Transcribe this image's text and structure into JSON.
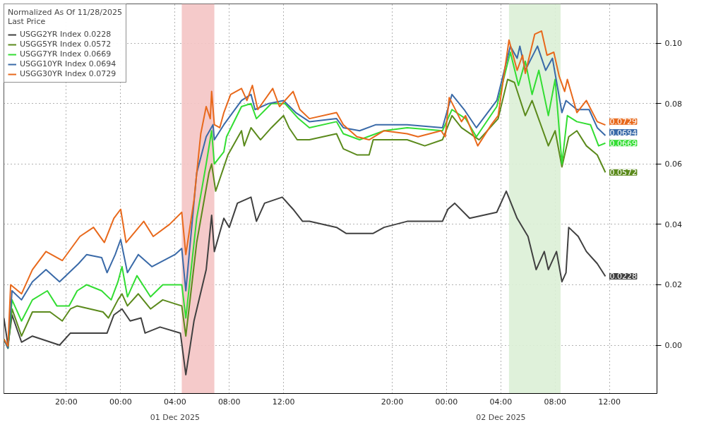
{
  "chart_data": {
    "type": "line",
    "legend_title": "Normalized As Of 11/28/2025\nLast Price",
    "legend": "top left",
    "grid": true,
    "line_style": "solid",
    "marker": "none",
    "annotations": [
      "01 Dec 2025",
      "02 Dec 2025"
    ],
    "xlim": [
      "2025-11-30T15:24",
      "2025-12-02T15:30"
    ],
    "xticks": [
      {
        "value": "2025-11-30T20:00",
        "label": "20:00"
      },
      {
        "value": "2025-12-01T00:00",
        "label": "00:00"
      },
      {
        "value": "2025-12-01T04:00",
        "label": "04:00"
      },
      {
        "value": "2025-12-01T08:00",
        "label": "08:00"
      },
      {
        "value": "2025-12-01T12:00",
        "label": "12:00"
      },
      {
        "value": "2025-12-01T20:00",
        "label": "20:00"
      },
      {
        "value": "2025-12-02T00:00",
        "label": "00:00"
      },
      {
        "value": "2025-12-02T04:00",
        "label": "04:00"
      },
      {
        "value": "2025-12-02T08:00",
        "label": "08:00"
      },
      {
        "value": "2025-12-02T12:00",
        "label": "12:00"
      }
    ],
    "ylim": [
      -0.016,
      0.113
    ],
    "yticks": [
      {
        "value": 0,
        "label": "0.00"
      },
      {
        "value": 0.02,
        "label": "0.02"
      },
      {
        "value": 0.04,
        "label": "0.04"
      },
      {
        "value": 0.06,
        "label": "0.06"
      },
      {
        "value": 0.08,
        "label": "0.08"
      },
      {
        "value": 0.1,
        "label": "0.10"
      }
    ],
    "bands": [
      {
        "axis": "x",
        "from": "2025-12-01T04:30",
        "to": "2025-12-01T06:54",
        "color": "#f4c4c4"
      },
      {
        "axis": "x",
        "from": "2025-12-02T04:36",
        "to": "2025-12-02T08:24",
        "color": "#dcefd6"
      }
    ],
    "series": [
      {
        "name": "USGG2YR Index 0.0228",
        "color": "#404040",
        "x": [
          "2025-11-30T15:24",
          "2025-11-30T15:42",
          "2025-11-30T16:00",
          "2025-11-30T16:42",
          "2025-11-30T17:30",
          "2025-11-30T19:30",
          "2025-11-30T20:18",
          "2025-11-30T23:00",
          "2025-11-30T23:30",
          "2025-12-01T00:06",
          "2025-12-01T00:42",
          "2025-12-01T01:30",
          "2025-12-01T01:48",
          "2025-12-01T02:54",
          "2025-12-01T04:24",
          "2025-12-01T04:48",
          "2025-12-01T05:24",
          "2025-12-01T06:18",
          "2025-12-01T06:42",
          "2025-12-01T06:54",
          "2025-12-01T07:36",
          "2025-12-01T08:00",
          "2025-12-01T08:36",
          "2025-12-01T09:36",
          "2025-12-01T10:00",
          "2025-12-01T10:36",
          "2025-12-01T11:54",
          "2025-12-01T12:42",
          "2025-12-01T13:24",
          "2025-12-01T13:54",
          "2025-12-01T15:54",
          "2025-12-01T16:36",
          "2025-12-01T18:36",
          "2025-12-01T19:24",
          "2025-12-01T21:06",
          "2025-12-01T23:42",
          "2025-12-02T00:06",
          "2025-12-02T00:36",
          "2025-12-02T01:42",
          "2025-12-02T03:42",
          "2025-12-02T04:24",
          "2025-12-02T05:12",
          "2025-12-02T06:00",
          "2025-12-02T06:36",
          "2025-12-02T07:12",
          "2025-12-02T07:30",
          "2025-12-02T08:06",
          "2025-12-02T08:30",
          "2025-12-02T08:48",
          "2025-12-02T09:00",
          "2025-12-02T09:42",
          "2025-12-02T10:18",
          "2025-12-02T11:06",
          "2025-12-02T11:42"
        ],
        "values": [
          0.009,
          0.0,
          0.01,
          0.001,
          0.003,
          0.0,
          0.004,
          0.004,
          0.01,
          0.012,
          0.008,
          0.009,
          0.004,
          0.006,
          0.004,
          -0.0098,
          0.008,
          0.025,
          0.043,
          0.031,
          0.042,
          0.039,
          0.047,
          0.049,
          0.041,
          0.047,
          0.049,
          0.045,
          0.041,
          0.041,
          0.039,
          0.037,
          0.037,
          0.039,
          0.041,
          0.041,
          0.045,
          0.047,
          0.042,
          0.044,
          0.051,
          0.042,
          0.036,
          0.025,
          0.031,
          0.025,
          0.031,
          0.021,
          0.024,
          0.039,
          0.036,
          0.031,
          0.027,
          0.0228
        ],
        "value_labels": [
          null,
          null,
          null,
          null,
          null,
          null,
          null,
          null,
          null,
          null,
          null,
          null,
          null,
          null,
          null,
          null,
          null,
          null,
          null,
          null,
          null,
          null,
          null,
          null,
          null,
          null,
          null,
          null,
          null,
          null,
          null,
          null,
          null,
          null,
          null,
          null,
          null,
          null,
          null,
          null,
          null,
          null,
          null,
          null,
          null,
          null,
          null,
          null,
          null,
          null,
          null,
          null,
          null,
          "0.0228"
        ]
      },
      {
        "name": "USGG5YR Index 0.0572",
        "color": "#5b8a1c",
        "x": [
          "2025-11-30T15:24",
          "2025-11-30T15:42",
          "2025-11-30T16:00",
          "2025-11-30T16:42",
          "2025-11-30T17:30",
          "2025-11-30T18:48",
          "2025-11-30T19:42",
          "2025-11-30T20:18",
          "2025-11-30T20:48",
          "2025-11-30T22:42",
          "2025-11-30T23:06",
          "2025-11-30T23:48",
          "2025-12-01T00:06",
          "2025-12-01T00:30",
          "2025-12-01T01:18",
          "2025-12-01T02:12",
          "2025-12-01T03:06",
          "2025-12-01T04:30",
          "2025-12-01T04:48",
          "2025-12-01T05:36",
          "2025-12-01T06:30",
          "2025-12-01T06:42",
          "2025-12-01T07:00",
          "2025-12-01T07:36",
          "2025-12-01T07:54",
          "2025-12-01T08:54",
          "2025-12-01T09:06",
          "2025-12-01T09:36",
          "2025-12-01T10:18",
          "2025-12-01T11:06",
          "2025-12-01T12:00",
          "2025-12-01T12:24",
          "2025-12-01T13:00",
          "2025-12-01T13:54",
          "2025-12-01T15:54",
          "2025-12-01T16:24",
          "2025-12-01T17:24",
          "2025-12-01T18:18",
          "2025-12-01T18:36",
          "2025-12-01T21:06",
          "2025-12-01T22:24",
          "2025-12-01T23:42",
          "2025-12-02T00:24",
          "2025-12-02T01:06",
          "2025-12-02T02:24",
          "2025-12-02T03:48",
          "2025-12-02T04:30",
          "2025-12-02T05:00",
          "2025-12-02T05:48",
          "2025-12-02T06:18",
          "2025-12-02T07:30",
          "2025-12-02T08:00",
          "2025-12-02T08:30",
          "2025-12-02T09:00",
          "2025-12-02T09:36",
          "2025-12-02T10:18",
          "2025-12-02T11:06",
          "2025-12-02T11:42"
        ],
        "values": [
          0.002,
          -0.001,
          0.012,
          0.003,
          0.011,
          0.011,
          0.008,
          0.012,
          0.013,
          0.011,
          0.009,
          0.015,
          0.017,
          0.013,
          0.017,
          0.012,
          0.015,
          0.013,
          0.003,
          0.034,
          0.057,
          0.06,
          0.051,
          0.059,
          0.063,
          0.071,
          0.066,
          0.072,
          0.068,
          0.072,
          0.076,
          0.072,
          0.068,
          0.068,
          0.07,
          0.065,
          0.063,
          0.063,
          0.068,
          0.068,
          0.066,
          0.068,
          0.076,
          0.072,
          0.068,
          0.075,
          0.088,
          0.087,
          0.076,
          0.081,
          0.066,
          0.071,
          0.059,
          0.069,
          0.071,
          0.066,
          0.063,
          0.0572
        ],
        "value_labels": [
          null,
          null,
          null,
          null,
          null,
          null,
          null,
          null,
          null,
          null,
          null,
          null,
          null,
          null,
          null,
          null,
          null,
          null,
          null,
          null,
          null,
          null,
          null,
          null,
          null,
          null,
          null,
          null,
          null,
          null,
          null,
          null,
          null,
          null,
          null,
          null,
          null,
          null,
          null,
          null,
          null,
          null,
          null,
          null,
          null,
          null,
          null,
          null,
          null,
          null,
          null,
          null,
          null,
          null,
          null,
          null,
          null,
          "0.0572"
        ]
      },
      {
        "name": "USGG7YR Index 0.0669",
        "color": "#33dd33",
        "x": [
          "2025-11-30T15:24",
          "2025-11-30T15:42",
          "2025-11-30T16:00",
          "2025-11-30T16:42",
          "2025-11-30T17:30",
          "2025-11-30T18:36",
          "2025-11-30T19:18",
          "2025-11-30T20:12",
          "2025-11-30T20:48",
          "2025-11-30T21:30",
          "2025-11-30T22:36",
          "2025-11-30T23:18",
          "2025-11-30T23:48",
          "2025-12-01T00:06",
          "2025-12-01T00:30",
          "2025-12-01T01:12",
          "2025-12-01T02:12",
          "2025-12-01T03:06",
          "2025-12-01T04:30",
          "2025-12-01T04:48",
          "2025-12-01T05:36",
          "2025-12-01T06:18",
          "2025-12-01T06:42",
          "2025-12-01T06:54",
          "2025-12-01T07:36",
          "2025-12-01T07:48",
          "2025-12-01T08:54",
          "2025-12-01T09:36",
          "2025-12-01T10:00",
          "2025-12-01T11:06",
          "2025-12-01T12:06",
          "2025-12-01T13:06",
          "2025-12-01T13:54",
          "2025-12-01T15:54",
          "2025-12-01T16:24",
          "2025-12-01T17:36",
          "2025-12-01T19:24",
          "2025-12-01T21:06",
          "2025-12-01T23:42",
          "2025-12-02T00:24",
          "2025-12-02T01:24",
          "2025-12-02T02:12",
          "2025-12-02T03:42",
          "2025-12-02T04:42",
          "2025-12-02T05:18",
          "2025-12-02T05:48",
          "2025-12-02T06:18",
          "2025-12-02T06:48",
          "2025-12-02T07:30",
          "2025-12-02T08:00",
          "2025-12-02T08:30",
          "2025-12-02T08:54",
          "2025-12-02T09:36",
          "2025-12-02T10:36",
          "2025-12-02T11:12",
          "2025-12-02T11:42"
        ],
        "values": [
          0.002,
          -0.001,
          0.015,
          0.008,
          0.015,
          0.018,
          0.013,
          0.013,
          0.018,
          0.02,
          0.018,
          0.015,
          0.021,
          0.026,
          0.016,
          0.023,
          0.016,
          0.02,
          0.02,
          0.009,
          0.042,
          0.06,
          0.071,
          0.06,
          0.064,
          0.069,
          0.079,
          0.08,
          0.075,
          0.08,
          0.08,
          0.075,
          0.072,
          0.074,
          0.07,
          0.068,
          0.071,
          0.072,
          0.071,
          0.078,
          0.075,
          0.069,
          0.079,
          0.097,
          0.086,
          0.094,
          0.083,
          0.091,
          0.076,
          0.088,
          0.06,
          0.076,
          0.074,
          0.073,
          0.066,
          0.0669
        ],
        "value_labels": [
          null,
          null,
          null,
          null,
          null,
          null,
          null,
          null,
          null,
          null,
          null,
          null,
          null,
          null,
          null,
          null,
          null,
          null,
          null,
          null,
          null,
          null,
          null,
          null,
          null,
          null,
          null,
          null,
          null,
          null,
          null,
          null,
          null,
          null,
          null,
          null,
          null,
          null,
          null,
          null,
          null,
          null,
          null,
          null,
          null,
          null,
          null,
          null,
          null,
          null,
          null,
          null,
          null,
          null,
          null,
          "0.0669"
        ]
      },
      {
        "name": "USGG10YR Index 0.0694",
        "color": "#3a6aa8",
        "x": [
          "2025-11-30T15:24",
          "2025-11-30T15:42",
          "2025-11-30T16:00",
          "2025-11-30T16:42",
          "2025-11-30T17:30",
          "2025-11-30T18:30",
          "2025-11-30T19:30",
          "2025-11-30T20:54",
          "2025-11-30T21:30",
          "2025-11-30T22:36",
          "2025-11-30T23:00",
          "2025-11-30T23:36",
          "2025-12-01T00:00",
          "2025-12-01T00:30",
          "2025-12-01T01:18",
          "2025-12-01T02:18",
          "2025-12-01T04:00",
          "2025-12-01T04:30",
          "2025-12-01T04:48",
          "2025-12-01T05:36",
          "2025-12-01T06:18",
          "2025-12-01T06:48",
          "2025-12-01T06:54",
          "2025-12-01T07:36",
          "2025-12-01T08:54",
          "2025-12-01T09:36",
          "2025-12-01T09:54",
          "2025-12-01T10:54",
          "2025-12-01T12:00",
          "2025-12-01T12:54",
          "2025-12-01T13:54",
          "2025-12-01T15:54",
          "2025-12-01T16:24",
          "2025-12-01T17:36",
          "2025-12-01T18:48",
          "2025-12-01T21:06",
          "2025-12-01T23:42",
          "2025-12-02T00:24",
          "2025-12-02T01:18",
          "2025-12-02T02:12",
          "2025-12-02T03:42",
          "2025-12-02T04:42",
          "2025-12-02T05:12",
          "2025-12-02T05:24",
          "2025-12-02T05:48",
          "2025-12-02T06:42",
          "2025-12-02T07:18",
          "2025-12-02T07:48",
          "2025-12-02T08:30",
          "2025-12-02T08:48",
          "2025-12-02T09:36",
          "2025-12-02T10:30",
          "2025-12-02T11:06",
          "2025-12-02T11:42"
        ],
        "values": [
          0.002,
          -0.001,
          0.018,
          0.015,
          0.021,
          0.025,
          0.021,
          0.027,
          0.03,
          0.029,
          0.024,
          0.03,
          0.035,
          0.024,
          0.03,
          0.026,
          0.03,
          0.032,
          0.018,
          0.057,
          0.069,
          0.073,
          0.068,
          0.073,
          0.081,
          0.083,
          0.078,
          0.08,
          0.081,
          0.077,
          0.074,
          0.075,
          0.072,
          0.071,
          0.073,
          0.073,
          0.072,
          0.083,
          0.078,
          0.072,
          0.081,
          0.099,
          0.095,
          0.099,
          0.091,
          0.099,
          0.091,
          0.095,
          0.077,
          0.081,
          0.078,
          0.078,
          0.072,
          0.0694
        ],
        "value_labels": [
          null,
          null,
          null,
          null,
          null,
          null,
          null,
          null,
          null,
          null,
          null,
          null,
          null,
          null,
          null,
          null,
          null,
          null,
          null,
          null,
          null,
          null,
          null,
          null,
          null,
          null,
          null,
          null,
          null,
          null,
          null,
          null,
          null,
          null,
          null,
          null,
          null,
          null,
          null,
          null,
          null,
          null,
          null,
          null,
          null,
          null,
          null,
          null,
          null,
          null,
          null,
          null,
          null,
          "0.0694"
        ]
      },
      {
        "name": "USGG30YR Index 0.0729",
        "color": "#e8691c",
        "x": [
          "2025-11-30T15:24",
          "2025-11-30T15:42",
          "2025-11-30T15:54",
          "2025-11-30T16:42",
          "2025-11-30T17:30",
          "2025-11-30T18:30",
          "2025-11-30T19:42",
          "2025-11-30T21:00",
          "2025-11-30T22:00",
          "2025-11-30T22:48",
          "2025-11-30T23:30",
          "2025-12-01T00:00",
          "2025-12-01T00:24",
          "2025-12-01T01:42",
          "2025-12-01T02:24",
          "2025-12-01T03:36",
          "2025-12-01T04:30",
          "2025-12-01T04:48",
          "2025-12-01T05:24",
          "2025-12-01T05:54",
          "2025-12-01T06:18",
          "2025-12-01T06:36",
          "2025-12-01T06:42",
          "2025-12-01T06:54",
          "2025-12-01T07:18",
          "2025-12-01T07:36",
          "2025-12-01T08:06",
          "2025-12-01T08:54",
          "2025-12-01T09:18",
          "2025-12-01T09:42",
          "2025-12-01T10:06",
          "2025-12-01T11:12",
          "2025-12-01T11:42",
          "2025-12-01T12:42",
          "2025-12-01T13:12",
          "2025-12-01T13:54",
          "2025-12-01T15:54",
          "2025-12-01T16:24",
          "2025-12-01T17:24",
          "2025-12-01T18:18",
          "2025-12-01T19:24",
          "2025-12-01T21:06",
          "2025-12-01T21:54",
          "2025-12-01T23:36",
          "2025-12-01T23:54",
          "2025-12-02T00:12",
          "2025-12-02T01:06",
          "2025-12-02T01:24",
          "2025-12-02T02:18",
          "2025-12-02T03:18",
          "2025-12-02T03:48",
          "2025-12-02T04:36",
          "2025-12-02T05:12",
          "2025-12-02T05:36",
          "2025-12-02T05:48",
          "2025-12-02T06:30",
          "2025-12-02T07:00",
          "2025-12-02T07:24",
          "2025-12-02T07:54",
          "2025-12-02T08:18",
          "2025-12-02T08:42",
          "2025-12-02T08:54",
          "2025-12-02T09:36",
          "2025-12-02T10:18",
          "2025-12-02T11:06",
          "2025-12-02T11:42"
        ],
        "values": [
          0.002,
          -0.0003,
          0.02,
          0.017,
          0.025,
          0.031,
          0.028,
          0.036,
          0.039,
          0.034,
          0.042,
          0.045,
          0.034,
          0.041,
          0.036,
          0.04,
          0.044,
          0.03,
          0.048,
          0.07,
          0.079,
          0.075,
          0.084,
          0.073,
          0.072,
          0.077,
          0.083,
          0.085,
          0.081,
          0.086,
          0.078,
          0.085,
          0.079,
          0.084,
          0.078,
          0.075,
          0.077,
          0.073,
          0.069,
          0.068,
          0.071,
          0.07,
          0.069,
          0.071,
          0.069,
          0.082,
          0.074,
          0.076,
          0.066,
          0.073,
          0.076,
          0.101,
          0.091,
          0.096,
          0.09,
          0.103,
          0.104,
          0.096,
          0.097,
          0.089,
          0.084,
          0.088,
          0.077,
          0.081,
          0.074,
          0.0729
        ],
        "value_labels": [
          null,
          null,
          null,
          null,
          null,
          null,
          null,
          null,
          null,
          null,
          null,
          null,
          null,
          null,
          null,
          null,
          null,
          null,
          null,
          null,
          null,
          null,
          null,
          null,
          null,
          null,
          null,
          null,
          null,
          null,
          null,
          null,
          null,
          null,
          null,
          null,
          null,
          null,
          null,
          null,
          null,
          null,
          null,
          null,
          null,
          null,
          null,
          null,
          null,
          null,
          null,
          null,
          null,
          null,
          null,
          null,
          null,
          null,
          null,
          null,
          null,
          null,
          null,
          null,
          null,
          "0.0729"
        ]
      }
    ]
  }
}
